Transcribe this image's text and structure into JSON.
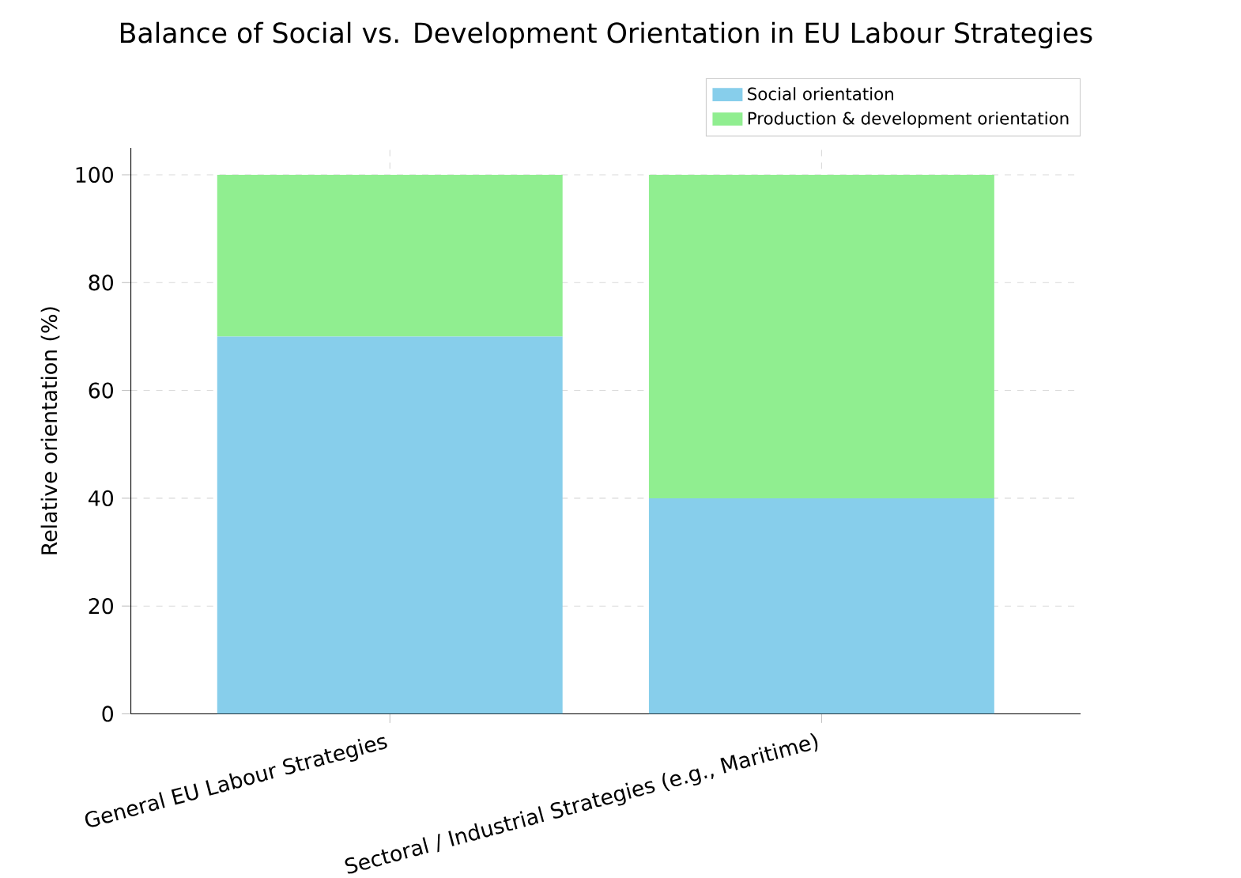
{
  "chart_data": {
    "type": "bar",
    "title": "Balance of Social vs. Development Orientation in EU Labour Strategies",
    "ylabel": "Relative orientation (%)",
    "categories": [
      "General EU Labour Strategies",
      "Sectoral / Industrial Strategies (e.g., Maritime)"
    ],
    "series": [
      {
        "name": "Social orientation",
        "color": "#87ceeb",
        "values": [
          70,
          40
        ]
      },
      {
        "name": "Production & development orientation",
        "color": "#90ee90",
        "values": [
          30,
          60
        ]
      }
    ],
    "stacked": true,
    "ylim": [
      0,
      105
    ],
    "yticks": [
      0,
      20,
      40,
      60,
      80,
      100
    ],
    "grid": true,
    "legend": "top right"
  }
}
